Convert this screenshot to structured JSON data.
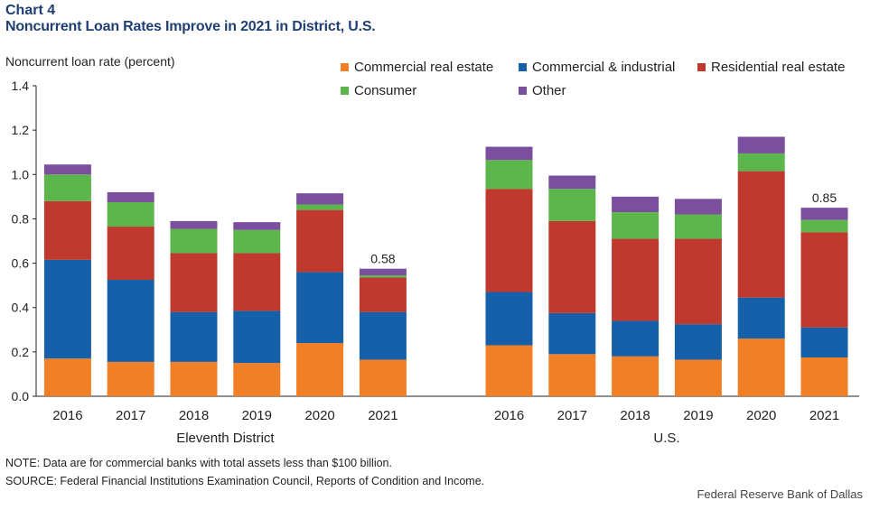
{
  "header": {
    "chart_number": "Chart 4",
    "title": "Noncurrent Loan Rates Improve in 2021 in District, U.S."
  },
  "footer": {
    "note": "NOTE:  Data are for commercial banks with total assets less than $100 billion.",
    "source": "SOURCE:  Federal Financial Institutions Examination Council, Reports of Condition and Income.",
    "credit": "Federal Reserve Bank of Dallas"
  },
  "chart_data": {
    "type": "bar",
    "stacked": true,
    "ylabel": "Noncurrent  loan rate (percent)",
    "ylim": [
      0,
      1.4
    ],
    "yticks": [
      "0.0",
      "0.2",
      "0.4",
      "0.6",
      "0.8",
      "1.0",
      "1.2",
      "1.4"
    ],
    "grid": false,
    "legend_position": "top-right",
    "groups": [
      {
        "name": "Eleventh  District",
        "categories": [
          "2016",
          "2017",
          "2018",
          "2019",
          "2020",
          "2021"
        ]
      },
      {
        "name": "U.S.",
        "categories": [
          "2016",
          "2017",
          "2018",
          "2019",
          "2020",
          "2021"
        ]
      }
    ],
    "series": [
      {
        "name": "Commercial real estate",
        "color": "#f07f26",
        "values": [
          0.17,
          0.155,
          0.155,
          0.15,
          0.24,
          0.165,
          0.23,
          0.19,
          0.18,
          0.165,
          0.26,
          0.175
        ]
      },
      {
        "name": "Commercial & industrial",
        "color": "#1560a8",
        "values": [
          0.445,
          0.37,
          0.225,
          0.235,
          0.32,
          0.215,
          0.24,
          0.185,
          0.16,
          0.16,
          0.185,
          0.135
        ]
      },
      {
        "name": "Residential real estate",
        "color": "#c0392e",
        "values": [
          0.265,
          0.24,
          0.265,
          0.26,
          0.28,
          0.155,
          0.465,
          0.415,
          0.37,
          0.385,
          0.57,
          0.43
        ]
      },
      {
        "name": "Consumer",
        "color": "#5db64c",
        "values": [
          0.12,
          0.11,
          0.11,
          0.105,
          0.025,
          0.01,
          0.13,
          0.145,
          0.12,
          0.11,
          0.08,
          0.055
        ]
      },
      {
        "name": "Other",
        "color": "#7b4f9e",
        "values": [
          0.045,
          0.045,
          0.035,
          0.035,
          0.05,
          0.03,
          0.06,
          0.06,
          0.07,
          0.07,
          0.075,
          0.055
        ]
      }
    ],
    "annotations": [
      {
        "group": 0,
        "category": "2021",
        "text": "0.58"
      },
      {
        "group": 1,
        "category": "2021",
        "text": "0.85"
      }
    ]
  }
}
